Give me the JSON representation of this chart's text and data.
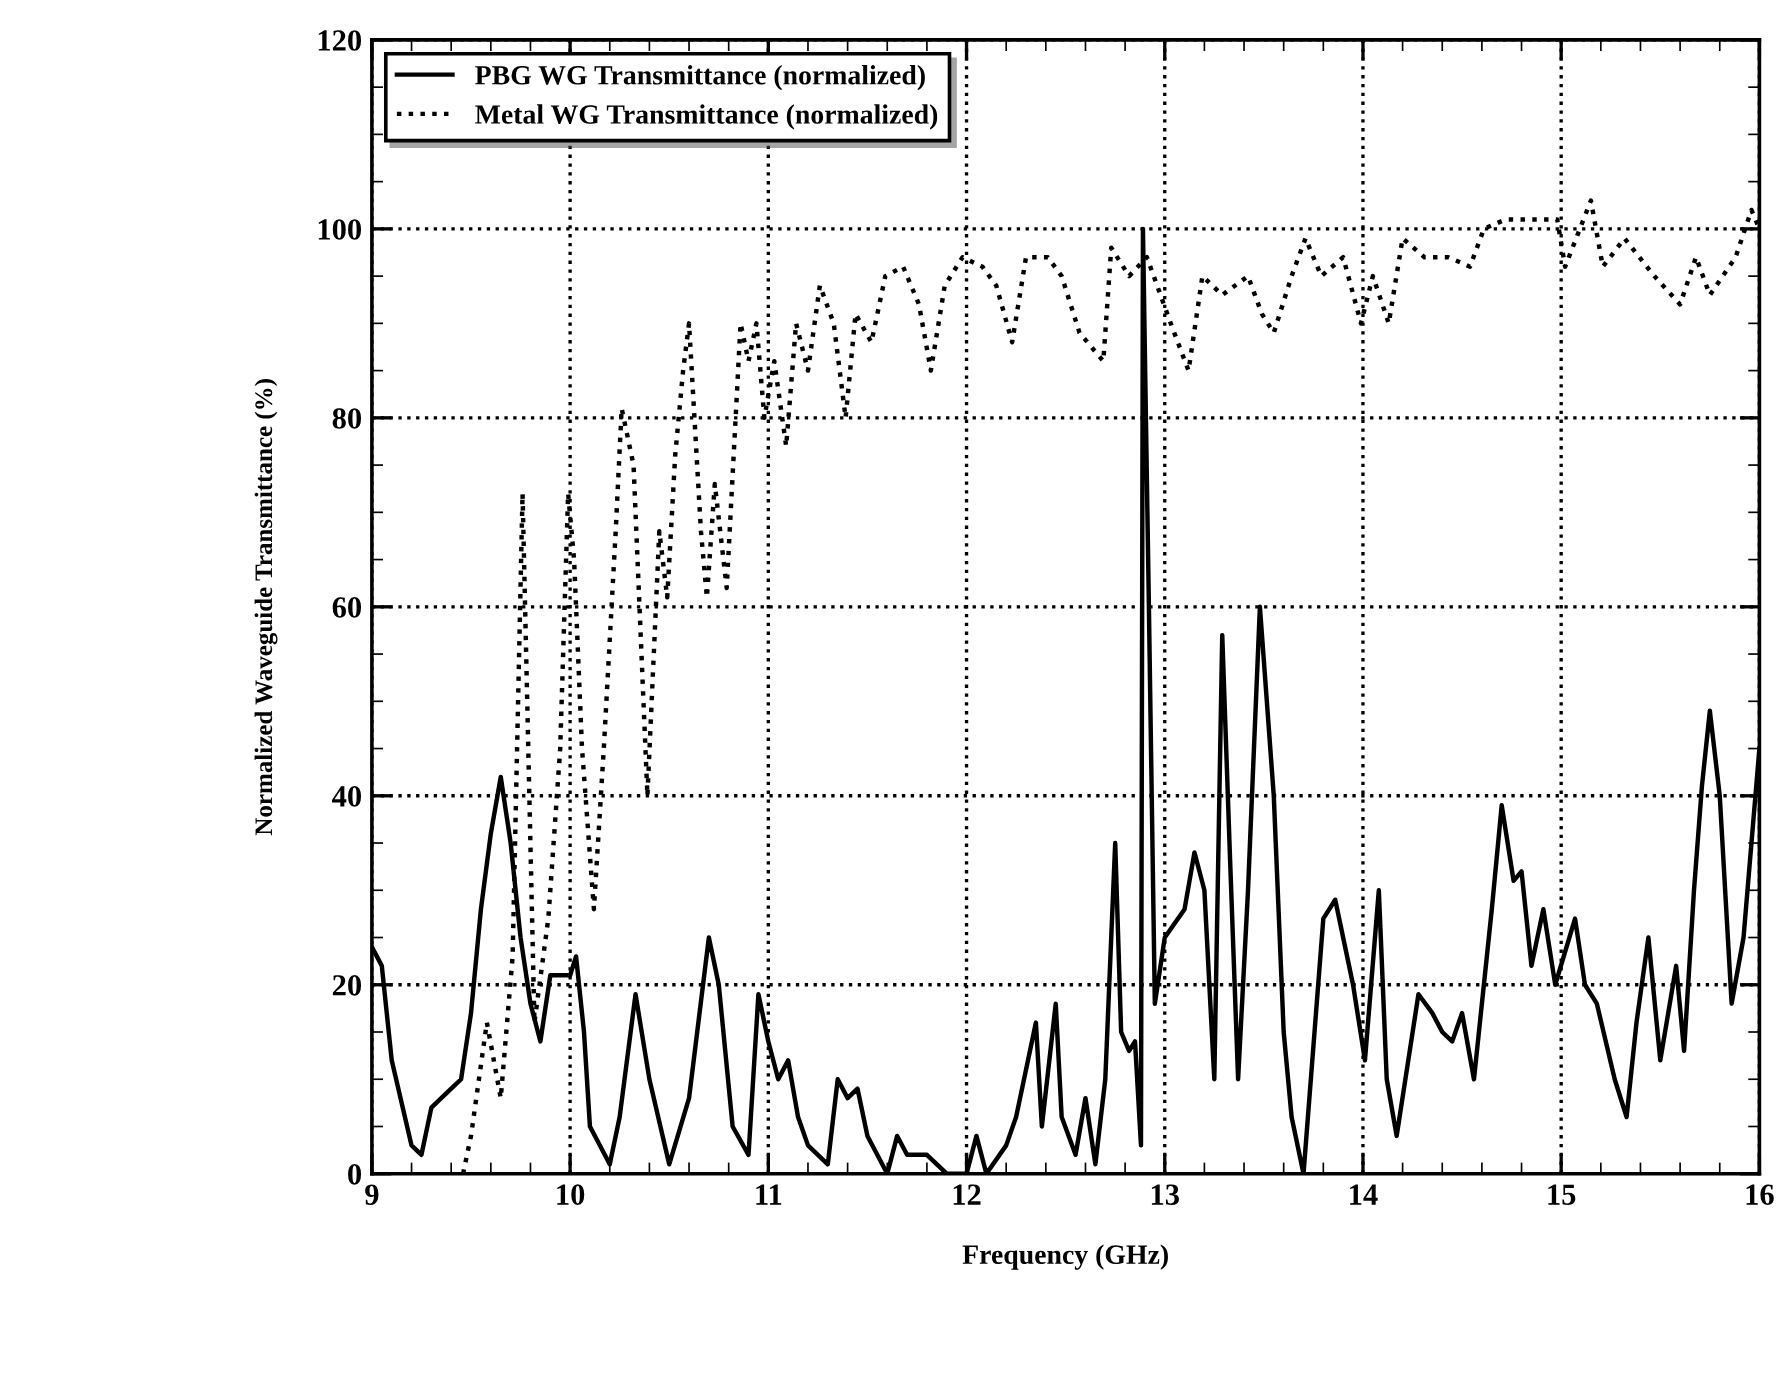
{
  "chart_data": {
    "type": "line",
    "xlabel": "Frequency (GHz)",
    "ylabel": "Normalized Waveguide Transmittance (%)",
    "xlim": [
      9,
      16
    ],
    "xticks": [
      9,
      10,
      11,
      12,
      13,
      14,
      15,
      16
    ],
    "ylim": [
      0,
      120
    ],
    "yticks": [
      0,
      20,
      40,
      60,
      80,
      100,
      120
    ],
    "grid": true,
    "legend": "top left",
    "series": [
      {
        "name": "PBG WG Transmittance (normalized)",
        "color": "#000000",
        "line_style": "solid",
        "x": [
          9.0,
          9.05,
          9.1,
          9.2,
          9.25,
          9.3,
          9.4,
          9.45,
          9.5,
          9.55,
          9.6,
          9.65,
          9.7,
          9.75,
          9.8,
          9.85,
          9.9,
          10.0,
          10.03,
          10.07,
          10.1,
          10.2,
          10.25,
          10.33,
          10.4,
          10.5,
          10.6,
          10.7,
          10.75,
          10.82,
          10.9,
          10.95,
          11.0,
          11.05,
          11.1,
          11.15,
          11.2,
          11.3,
          11.35,
          11.4,
          11.45,
          11.5,
          11.6,
          11.65,
          11.7,
          11.8,
          11.9,
          12.0,
          12.05,
          12.1,
          12.2,
          12.25,
          12.35,
          12.38,
          12.45,
          12.48,
          12.55,
          12.6,
          12.65,
          12.7,
          12.75,
          12.78,
          12.82,
          12.85,
          12.88,
          12.89,
          12.92,
          12.95,
          13.0,
          13.1,
          13.15,
          13.2,
          13.25,
          13.29,
          13.33,
          13.37,
          13.42,
          13.48,
          13.55,
          13.6,
          13.64,
          13.7,
          13.8,
          13.86,
          13.95,
          14.01,
          14.08,
          14.12,
          14.17,
          14.28,
          14.35,
          14.4,
          14.45,
          14.5,
          14.56,
          14.65,
          14.7,
          14.76,
          14.8,
          14.85,
          14.91,
          14.97,
          15.07,
          15.12,
          15.18,
          15.27,
          15.33,
          15.38,
          15.44,
          15.5,
          15.58,
          15.62,
          15.67,
          15.71,
          15.75,
          15.8,
          15.86,
          15.92,
          16.0
        ],
        "values": [
          24,
          22,
          12,
          3,
          2,
          7,
          9,
          10,
          17,
          28,
          36,
          42,
          35,
          25,
          18,
          14,
          21,
          21,
          23,
          15,
          5,
          1,
          6,
          19,
          10,
          1,
          8,
          25,
          20,
          5,
          2,
          19,
          14,
          10,
          12,
          6,
          3,
          1,
          10,
          8,
          9,
          4,
          0,
          4,
          2,
          2,
          0,
          0,
          4,
          0,
          3,
          6,
          16,
          5,
          18,
          6,
          2,
          8,
          1,
          10,
          35,
          15,
          13,
          14,
          3,
          100,
          60,
          18,
          25,
          28,
          34,
          30,
          10,
          57,
          33,
          10,
          30,
          60,
          40,
          15,
          6,
          0,
          27,
          29,
          20,
          12,
          30,
          10,
          4,
          19,
          17,
          15,
          14,
          17,
          10,
          28,
          39,
          31,
          32,
          22,
          28,
          20,
          27,
          20,
          18,
          10,
          6,
          16,
          25,
          12,
          22,
          13,
          30,
          41,
          49,
          40,
          18,
          25,
          45
        ]
      },
      {
        "name": "Metal WG Transmittance (normalized)",
        "color": "#000000",
        "line_style": "dotted",
        "x": [
          9.46,
          9.5,
          9.58,
          9.65,
          9.71,
          9.76,
          9.82,
          9.89,
          9.95,
          9.99,
          10.02,
          10.06,
          10.12,
          10.17,
          10.23,
          10.26,
          10.32,
          10.39,
          10.45,
          10.49,
          10.53,
          10.57,
          10.6,
          10.66,
          10.69,
          10.73,
          10.79,
          10.83,
          10.86,
          10.9,
          10.94,
          10.98,
          11.03,
          11.09,
          11.14,
          11.2,
          11.26,
          11.33,
          11.39,
          11.44,
          11.52,
          11.59,
          11.68,
          11.76,
          11.82,
          11.89,
          11.98,
          12.08,
          12.15,
          12.23,
          12.3,
          12.41,
          12.48,
          12.57,
          12.69,
          12.73,
          12.82,
          12.91,
          13.03,
          13.12,
          13.19,
          13.29,
          13.42,
          13.49,
          13.55,
          13.64,
          13.71,
          13.79,
          13.9,
          13.99,
          14.05,
          14.13,
          14.2,
          14.31,
          14.43,
          14.54,
          14.61,
          14.72,
          14.83,
          14.98,
          15.02,
          15.15,
          15.21,
          15.32,
          15.47,
          15.6,
          15.68,
          15.75,
          15.88,
          15.96,
          16.0
        ],
        "values": [
          0,
          4,
          16,
          8,
          23,
          72,
          16,
          27,
          45,
          72,
          65,
          45,
          28,
          45,
          68,
          81,
          75,
          40,
          68,
          61,
          76,
          85,
          90,
          68,
          61,
          73,
          62,
          78,
          90,
          86,
          90,
          80,
          86,
          77,
          90,
          85,
          94,
          90,
          80,
          91,
          88,
          95,
          96,
          92,
          85,
          94,
          97,
          96,
          94,
          88,
          97,
          97,
          95,
          89,
          86,
          98,
          95,
          97,
          90,
          85,
          95,
          93,
          95,
          91,
          89,
          95,
          99,
          95,
          97,
          90,
          95,
          90,
          99,
          97,
          97,
          96,
          100,
          101,
          101,
          101,
          96,
          103,
          96,
          99,
          95,
          92,
          97,
          93,
          97,
          102,
          100
        ]
      }
    ]
  }
}
